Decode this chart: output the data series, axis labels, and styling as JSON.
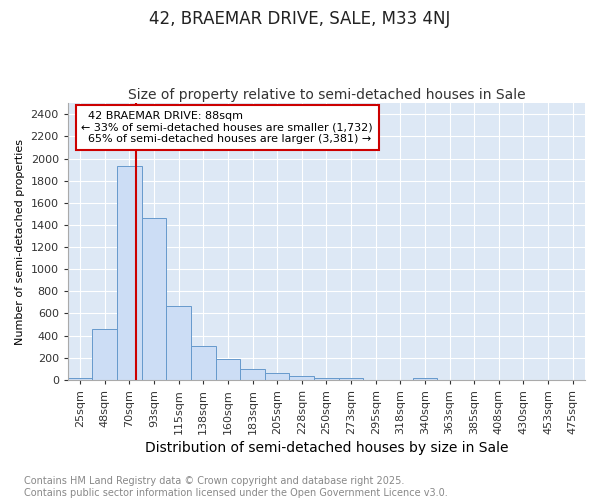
{
  "title": "42, BRAEMAR DRIVE, SALE, M33 4NJ",
  "subtitle": "Size of property relative to semi-detached houses in Sale",
  "xlabel": "Distribution of semi-detached houses by size in Sale",
  "ylabel": "Number of semi-detached properties",
  "bar_labels": [
    "25sqm",
    "48sqm",
    "70sqm",
    "93sqm",
    "115sqm",
    "138sqm",
    "160sqm",
    "183sqm",
    "205sqm",
    "228sqm",
    "250sqm",
    "273sqm",
    "295sqm",
    "318sqm",
    "340sqm",
    "363sqm",
    "385sqm",
    "408sqm",
    "430sqm",
    "453sqm",
    "475sqm"
  ],
  "bar_values": [
    20,
    460,
    1930,
    1460,
    670,
    310,
    185,
    95,
    60,
    35,
    20,
    15,
    2,
    2,
    20,
    0,
    0,
    0,
    0,
    0,
    0
  ],
  "bar_color": "#ccddf5",
  "bar_edge_color": "#6699cc",
  "property_label": "42 BRAEMAR DRIVE: 88sqm",
  "pct_smaller": 33,
  "pct_larger": 65,
  "count_smaller": 1732,
  "count_larger": 3381,
  "annotation_box_color": "#ffffff",
  "annotation_box_edge": "#cc0000",
  "red_line_color": "#cc0000",
  "ylim": [
    0,
    2500
  ],
  "yticks": [
    0,
    200,
    400,
    600,
    800,
    1000,
    1200,
    1400,
    1600,
    1800,
    2000,
    2200,
    2400
  ],
  "fig_bg_color": "#ffffff",
  "plot_bg_color": "#dde8f5",
  "grid_color": "#ffffff",
  "footer_text": "Contains HM Land Registry data © Crown copyright and database right 2025.\nContains public sector information licensed under the Open Government Licence v3.0.",
  "title_fontsize": 12,
  "subtitle_fontsize": 10,
  "xlabel_fontsize": 10,
  "ylabel_fontsize": 8,
  "tick_fontsize": 8,
  "footer_fontsize": 7,
  "ann_fontsize": 8
}
